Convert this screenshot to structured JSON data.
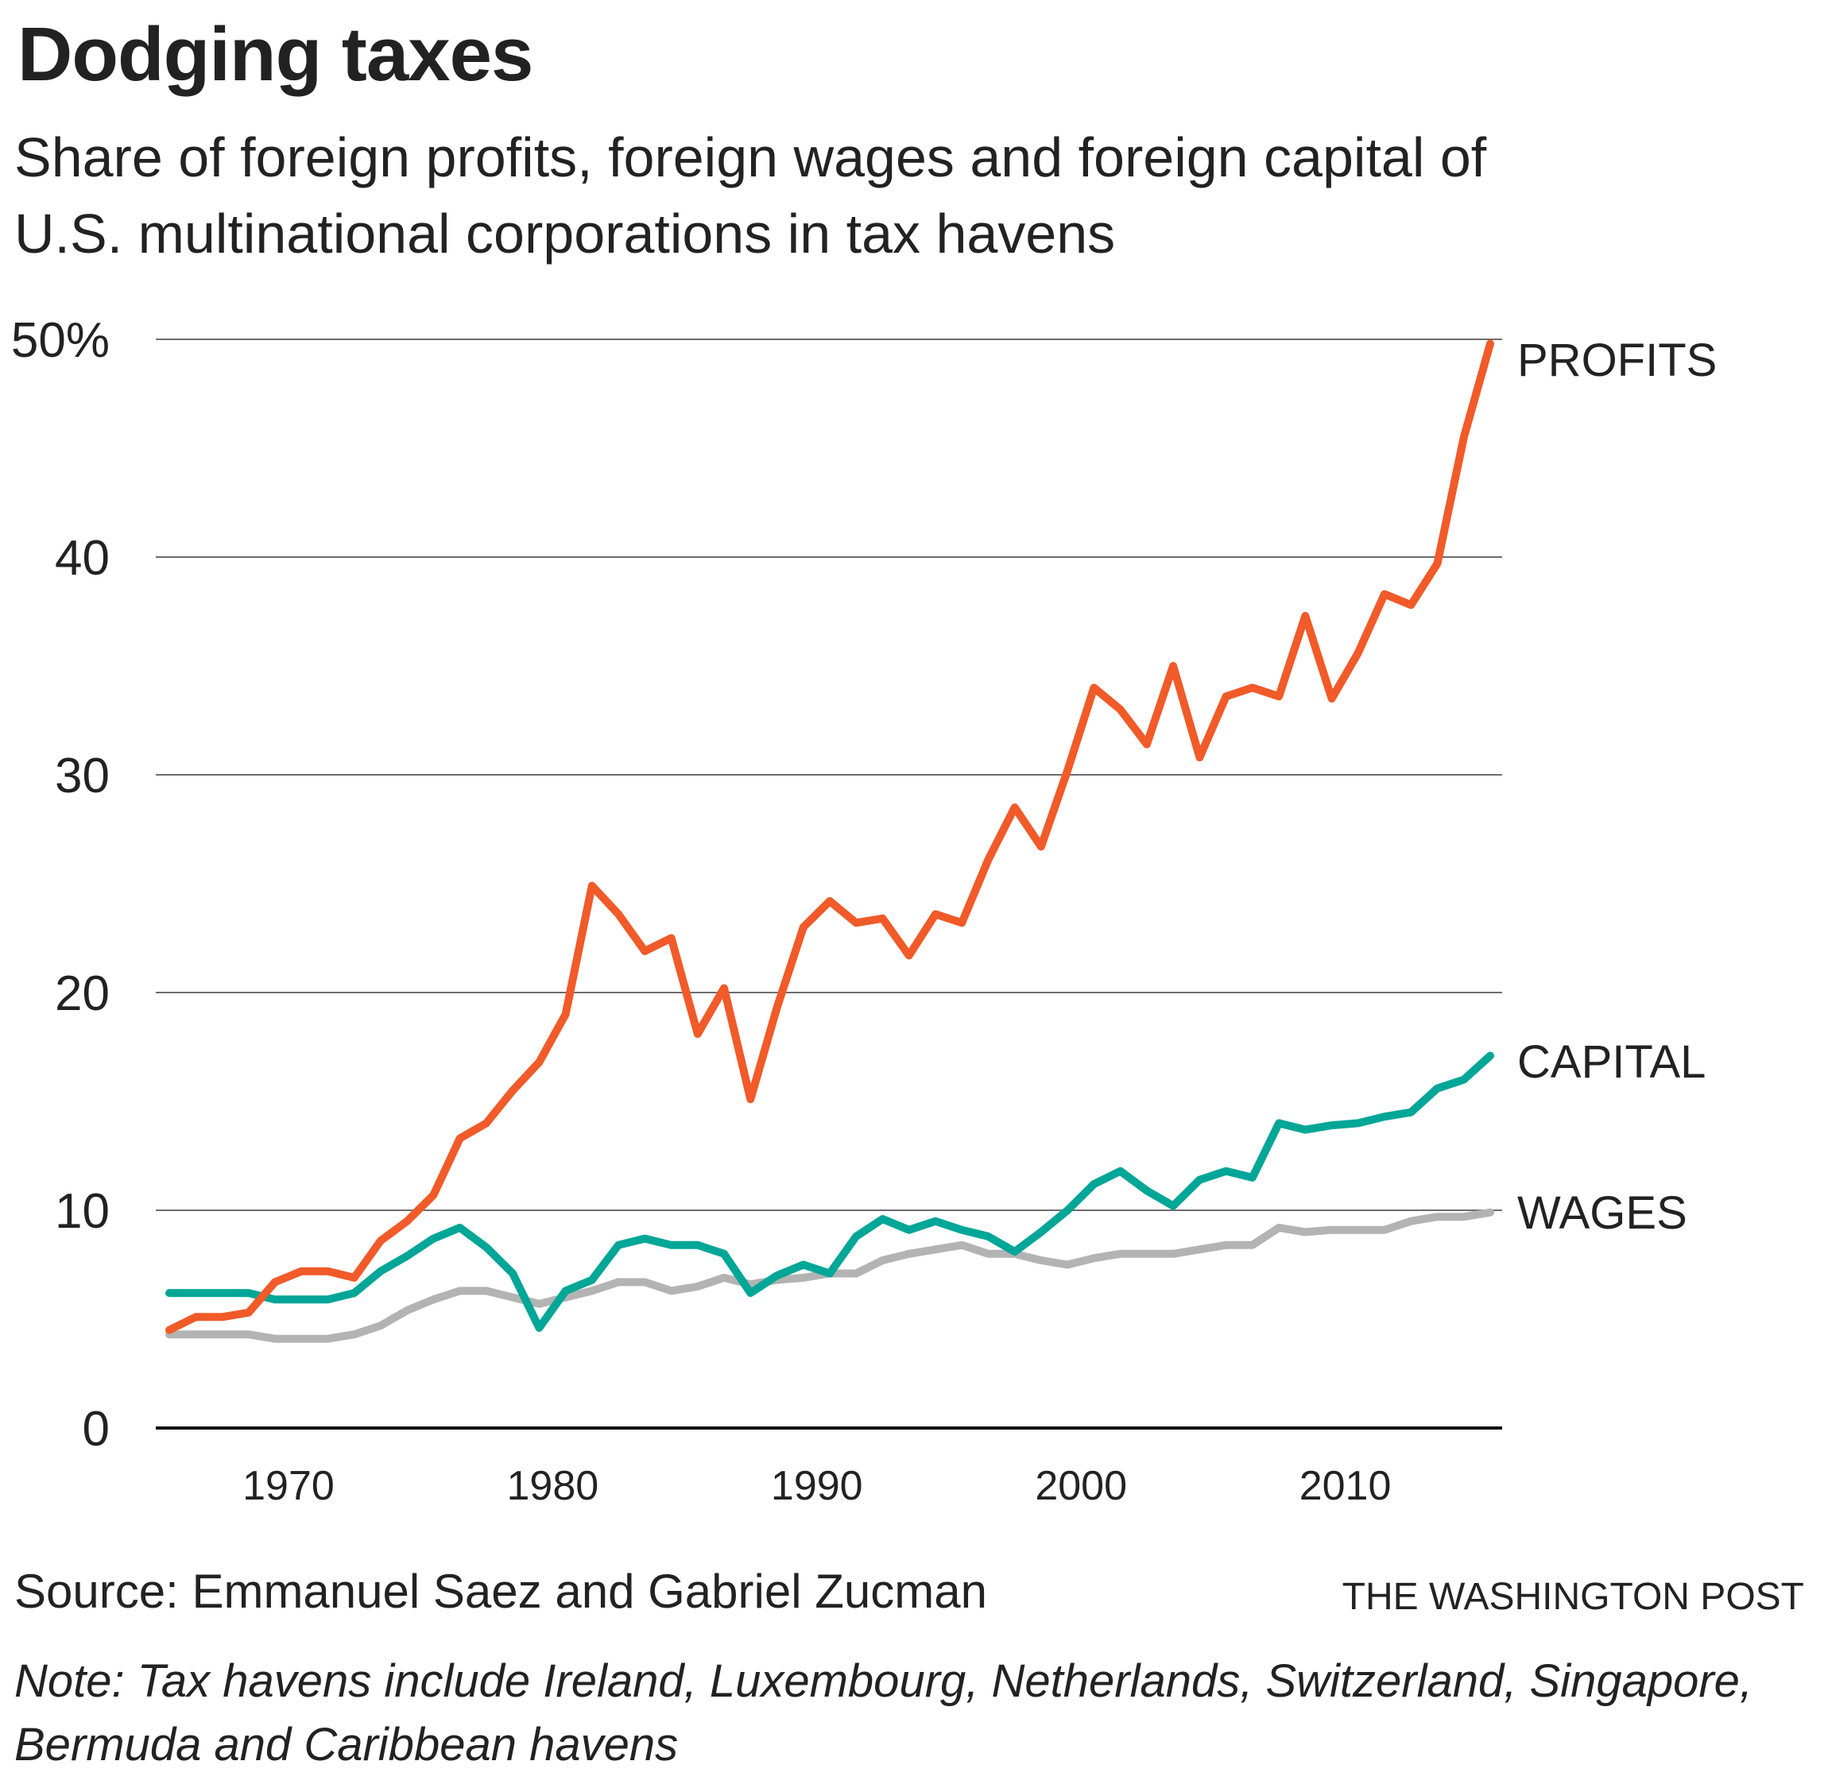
{
  "header": {
    "title": "Dodging taxes",
    "subtitle_lines": [
      "Share of foreign profits, foreign wages and foreign capital of",
      "U.S. multinational corporations in tax havens"
    ]
  },
  "footer": {
    "source": "Source: Emmanuel Saez and Gabriel Zucman",
    "credit": "THE WASHINGTON POST",
    "note_lines": [
      "Note: Tax havens include Ireland, Luxembourg, Netherlands, Switzerland, Singapore,",
      "Bermuda and Caribbean havens"
    ]
  },
  "chart_data": {
    "type": "line",
    "title": "Dodging taxes",
    "xlabel": "",
    "ylabel": "",
    "x": [
      1966,
      1967,
      1968,
      1969,
      1970,
      1971,
      1972,
      1973,
      1974,
      1975,
      1976,
      1977,
      1978,
      1979,
      1980,
      1981,
      1982,
      1983,
      1984,
      1985,
      1986,
      1987,
      1988,
      1989,
      1990,
      1991,
      1992,
      1993,
      1994,
      1995,
      1996,
      1997,
      1998,
      1999,
      2000,
      2001,
      2002,
      2003,
      2004,
      2005,
      2006,
      2007,
      2008,
      2009,
      2010,
      2011,
      2012,
      2013,
      2014,
      2015,
      2016
    ],
    "xlim": [
      1966,
      2016
    ],
    "ylim": [
      0,
      50
    ],
    "grid": true,
    "y_ticks": [
      {
        "value": 0,
        "label": "0"
      },
      {
        "value": 10,
        "label": "10"
      },
      {
        "value": 20,
        "label": "20"
      },
      {
        "value": 30,
        "label": "30"
      },
      {
        "value": 40,
        "label": "40"
      },
      {
        "value": 50,
        "label": "50%"
      }
    ],
    "x_ticks": [
      {
        "value": 1970,
        "label": "1970"
      },
      {
        "value": 1980,
        "label": "1980"
      },
      {
        "value": 1990,
        "label": "1990"
      },
      {
        "value": 2000,
        "label": "2000"
      },
      {
        "value": 2010,
        "label": "2010"
      }
    ],
    "legend": "direct labels at right end of lines",
    "series": [
      {
        "name": "PROFITS",
        "color": "#F15A29",
        "values": [
          4.5,
          5.1,
          5.1,
          5.3,
          6.7,
          7.2,
          7.2,
          6.9,
          8.6,
          9.5,
          10.7,
          13.3,
          14.0,
          15.5,
          16.8,
          19.0,
          24.9,
          23.6,
          21.9,
          22.5,
          18.1,
          20.2,
          15.1,
          19.3,
          23.0,
          24.2,
          23.2,
          23.4,
          21.7,
          23.6,
          23.2,
          26.1,
          28.5,
          26.7,
          30.2,
          34.0,
          33.0,
          31.4,
          35.0,
          30.8,
          33.6,
          34.0,
          33.6,
          37.3,
          33.5,
          35.6,
          38.3,
          37.8,
          39.7,
          45.5,
          49.8
        ]
      },
      {
        "name": "CAPITAL",
        "color": "#00A697",
        "values": [
          6.2,
          6.2,
          6.2,
          6.2,
          5.9,
          5.9,
          5.9,
          6.2,
          7.2,
          7.9,
          8.7,
          9.2,
          8.3,
          7.1,
          4.6,
          6.3,
          6.8,
          8.4,
          8.7,
          8.4,
          8.4,
          8.0,
          6.2,
          7.0,
          7.5,
          7.1,
          8.8,
          9.6,
          9.1,
          9.5,
          9.1,
          8.8,
          8.1,
          9.0,
          10.0,
          11.2,
          11.8,
          10.9,
          10.2,
          11.4,
          11.8,
          11.5,
          14.0,
          13.7,
          13.9,
          14.0,
          14.3,
          14.5,
          15.6,
          16.0,
          17.1
        ]
      },
      {
        "name": "WAGES",
        "color": "#B3B3B3",
        "values": [
          4.3,
          4.3,
          4.3,
          4.3,
          4.1,
          4.1,
          4.1,
          4.3,
          4.7,
          5.4,
          5.9,
          6.3,
          6.3,
          6.0,
          5.7,
          6.0,
          6.3,
          6.7,
          6.7,
          6.3,
          6.5,
          6.9,
          6.6,
          6.8,
          6.9,
          7.1,
          7.1,
          7.7,
          8.0,
          8.2,
          8.4,
          8.0,
          8.0,
          7.7,
          7.5,
          7.8,
          8.0,
          8.0,
          8.0,
          8.2,
          8.4,
          8.4,
          9.2,
          9.0,
          9.1,
          9.1,
          9.1,
          9.5,
          9.7,
          9.7,
          9.9
        ]
      }
    ]
  }
}
